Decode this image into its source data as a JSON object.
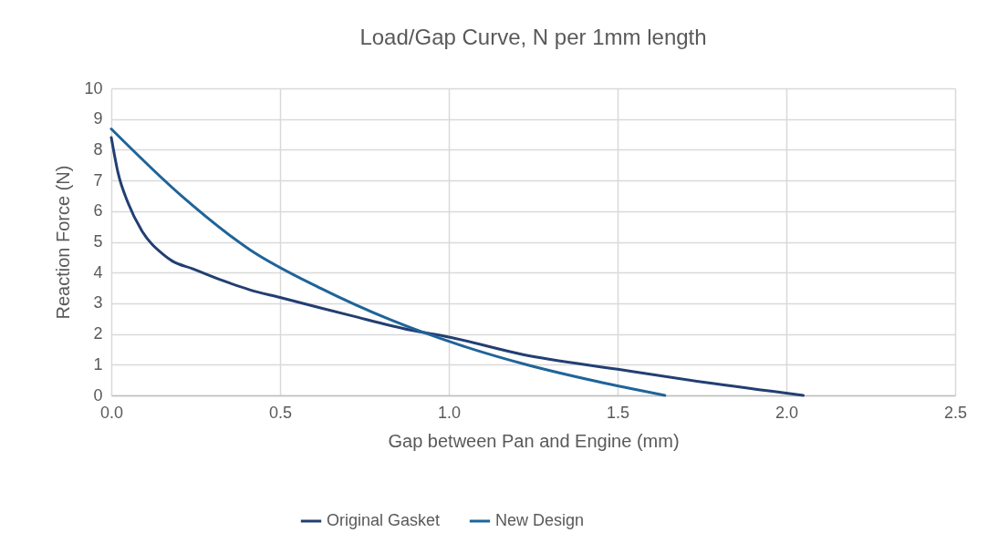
{
  "chart_data": {
    "type": "line",
    "title": "Load/Gap Curve, N per 1mm length",
    "xlabel": "Gap between Pan and Engine (mm)",
    "ylabel": "Reaction Force (N)",
    "xlim": [
      0,
      2.5
    ],
    "xticks": [
      {
        "value": 0,
        "label": "0.0"
      },
      {
        "value": 0.5,
        "label": "0.5"
      },
      {
        "value": 1,
        "label": "1.0"
      },
      {
        "value": 1.5,
        "label": "1.5"
      },
      {
        "value": 2,
        "label": "2.0"
      },
      {
        "value": 2.5,
        "label": "2.5"
      }
    ],
    "ylim": [
      0,
      10
    ],
    "yticks": [
      0,
      1,
      2,
      3,
      4,
      5,
      6,
      7,
      8,
      9,
      10
    ],
    "grid": true,
    "legend": "bottom",
    "marker": "none",
    "line_style": "solid",
    "series": [
      {
        "name": "Original Gasket",
        "color": "#223f72",
        "x": [
          0,
          0.02,
          0.05,
          0.09,
          0.155,
          0.18,
          0.24,
          0.33,
          0.41,
          0.5,
          0.62,
          0.71,
          0.886,
          1.0,
          1.22,
          1.5,
          1.76,
          2.05
        ],
        "values": [
          8.4,
          7.25,
          6.26,
          5.37,
          4.58,
          4.38,
          4.13,
          3.74,
          3.44,
          3.19,
          2.85,
          2.6,
          2.13,
          1.9,
          1.33,
          0.85,
          0.42,
          0
        ]
      },
      {
        "name": "New Design",
        "color": "#1f6499",
        "x": [
          0,
          0.21,
          0.41,
          0.62,
          0.83,
          1.03,
          1.23,
          1.44,
          1.64
        ],
        "values": [
          8.68,
          6.48,
          4.75,
          3.49,
          2.45,
          1.65,
          1.0,
          0.45,
          0
        ]
      }
    ]
  }
}
